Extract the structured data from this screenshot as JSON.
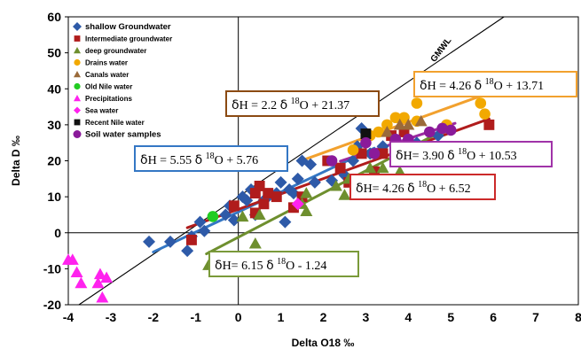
{
  "chart_data": {
    "type": "scatter",
    "xlabel": "Delta O18 ‰",
    "ylabel": "Delta D ‰",
    "xlim": [
      -4,
      8
    ],
    "ylim": [
      -20,
      60
    ],
    "xticks": [
      "-4",
      "-3",
      "-2",
      "-1",
      "0",
      "1",
      "2",
      "3",
      "4",
      "5",
      "6",
      "7",
      "8"
    ],
    "yticks": [
      "-20",
      "-10",
      "0",
      "10",
      "20",
      "30",
      "40",
      "50",
      "60"
    ],
    "grid": false,
    "legend_position": "top-left",
    "series": [
      {
        "name": "shallow Groundwater",
        "marker": "diamond",
        "color": "#2e5aa8",
        "points": [
          [
            -2.1,
            -2.5
          ],
          [
            -1.6,
            -2.5
          ],
          [
            -1.2,
            -5
          ],
          [
            -1.1,
            -1
          ],
          [
            -0.9,
            3
          ],
          [
            -0.8,
            0.5
          ],
          [
            -0.3,
            5
          ],
          [
            -0.2,
            7.5
          ],
          [
            -0.1,
            3.5
          ],
          [
            0.1,
            10
          ],
          [
            0.2,
            9
          ],
          [
            0.3,
            12
          ],
          [
            0.4,
            5
          ],
          [
            0.6,
            9
          ],
          [
            0.7,
            10
          ],
          [
            0.9,
            11
          ],
          [
            1,
            14
          ],
          [
            1.1,
            3
          ],
          [
            1.2,
            12
          ],
          [
            1.3,
            11
          ],
          [
            1.4,
            15
          ],
          [
            1.5,
            20
          ],
          [
            1.7,
            19
          ],
          [
            1.8,
            14
          ],
          [
            2.2,
            14.5
          ],
          [
            2.5,
            16
          ],
          [
            2.7,
            20
          ],
          [
            2.8,
            24
          ],
          [
            2.9,
            29
          ],
          [
            3.1,
            22
          ],
          [
            3.4,
            24
          ],
          [
            4.2,
            25
          ],
          [
            4.7,
            27
          ]
        ]
      },
      {
        "name": "Intermediate groundwater",
        "marker": "square",
        "color": "#b01c1c",
        "points": [
          [
            -1.1,
            -2
          ],
          [
            -0.1,
            7.5
          ],
          [
            0.4,
            5.5
          ],
          [
            0.4,
            11
          ],
          [
            0.5,
            13
          ],
          [
            0.6,
            8
          ],
          [
            0.7,
            11
          ],
          [
            0.9,
            10
          ],
          [
            1.3,
            7
          ],
          [
            1.5,
            10
          ],
          [
            2.1,
            20
          ],
          [
            2.4,
            18
          ],
          [
            2.6,
            14
          ],
          [
            2.9,
            22
          ],
          [
            3.2,
            17
          ],
          [
            3.4,
            22
          ],
          [
            3.6,
            27
          ],
          [
            3.9,
            28
          ],
          [
            5.9,
            30
          ]
        ]
      },
      {
        "name": "deep groundwater",
        "marker": "triangle",
        "color": "#6e8f2e",
        "points": [
          [
            -0.7,
            -9
          ],
          [
            0.1,
            4.5
          ],
          [
            0.4,
            -3
          ],
          [
            0.5,
            5
          ],
          [
            1.5,
            8
          ],
          [
            1.6,
            11
          ],
          [
            1.6,
            6
          ],
          [
            2.3,
            13
          ],
          [
            2.5,
            10.5
          ],
          [
            2.6,
            15
          ],
          [
            3.1,
            18
          ],
          [
            3.4,
            18
          ],
          [
            3.7,
            20
          ],
          [
            3.8,
            17
          ],
          [
            4.4,
            23
          ],
          [
            4.6,
            22
          ]
        ]
      },
      {
        "name": "Drains water",
        "marker": "circle",
        "color": "#f2a900",
        "points": [
          [
            2.7,
            23
          ],
          [
            3.1,
            27
          ],
          [
            3.3,
            28
          ],
          [
            3.5,
            30
          ],
          [
            3.7,
            32
          ],
          [
            3.9,
            32
          ],
          [
            4.2,
            31
          ],
          [
            4.2,
            36
          ],
          [
            4.9,
            30
          ],
          [
            5.7,
            36
          ],
          [
            5.8,
            33
          ]
        ]
      },
      {
        "name": "Canals water",
        "marker": "triangle",
        "color": "#9a6a3a",
        "points": [
          [
            3.5,
            28
          ],
          [
            3.8,
            30
          ],
          [
            4,
            30
          ],
          [
            4.3,
            31
          ]
        ]
      },
      {
        "name": "Old Nile water",
        "marker": "circle",
        "color": "#22cc22",
        "points": [
          [
            -0.6,
            4.5
          ]
        ]
      },
      {
        "name": "Precipitations",
        "marker": "triangle",
        "color": "#ff22ee",
        "points": [
          [
            -4,
            -7.5
          ],
          [
            -3.9,
            -7.5
          ],
          [
            -3.8,
            -11
          ],
          [
            -3.7,
            -14
          ],
          [
            -3.3,
            -14
          ],
          [
            -3.25,
            -11.5
          ],
          [
            -3.1,
            -12.5
          ],
          [
            -3.2,
            -18
          ]
        ]
      },
      {
        "name": "Sea water",
        "marker": "diamond",
        "color": "#ff22ee",
        "points": [
          [
            1.4,
            8
          ]
        ]
      },
      {
        "name": "Recent Nile water",
        "marker": "square",
        "color": "#111111",
        "points": [
          [
            3,
            27.5
          ]
        ]
      },
      {
        "name": "Soil water samples",
        "marker": "circle",
        "color": "#8a1a9a",
        "points": [
          [
            2.2,
            20
          ],
          [
            3,
            25
          ],
          [
            3.2,
            22
          ],
          [
            3.7,
            26
          ],
          [
            4,
            26
          ],
          [
            4.5,
            28
          ],
          [
            4.8,
            29
          ],
          [
            5,
            28.5
          ]
        ]
      }
    ],
    "reference_line": {
      "name": "GMWL",
      "label": "GMWL",
      "slope": 8,
      "intercept": 10
    },
    "fits": [
      {
        "label": "ẟH = 4.26 ẟ ¹⁸O + 13.71",
        "text_parts": [
          "ẟH = 4.26 ẟ ",
          "18",
          "O + 13.71"
        ],
        "slope": 4.26,
        "intercept": 13.71,
        "x_range": [
          1.5,
          5.8
        ],
        "color": "#f2a12e",
        "box_color": "#f2a12e"
      },
      {
        "label": "ẟH = 2.2 ẟ ¹⁸O + 21.37",
        "text_parts": [
          "ẟH = 2.2 ẟ ",
          "18",
          "O + 21.37"
        ],
        "color": "#8b4a12",
        "box_color": "#8b4a12"
      },
      {
        "label": "ẟH = 5.55 ẟ ¹⁸O + 5.76",
        "text_parts": [
          "ẟH = 5.55 ẟ ",
          "18",
          "O + 5.76"
        ],
        "slope": 5.55,
        "intercept": 5.76,
        "x_range": [
          -2,
          3.2
        ],
        "color": "#3477c4",
        "box_color": "#3477c4"
      },
      {
        "label": "ẟH= 3.90 ẟ ¹⁸O + 10.53",
        "text_parts": [
          "ẟH= 3.90 ẟ ",
          "18",
          "O + 10.53"
        ],
        "slope": 3.9,
        "intercept": 10.53,
        "x_range": [
          2.4,
          5.1
        ],
        "color": "#9b2aa0",
        "box_color": "#a033a8"
      },
      {
        "label": "ẟH= 4.26 ẟ ¹⁸O + 6.52",
        "text_parts": [
          "ẟH= 4.26 ẟ ",
          "18",
          "O + 6.52"
        ],
        "slope": 4.26,
        "intercept": 6.52,
        "x_range": [
          -1.2,
          5.9
        ],
        "color": "#b01c1c",
        "box_color": "#cc2a2a"
      },
      {
        "label": "ẟH= 6.15 ẟ ¹⁸O - 1.24",
        "text_parts": [
          "ẟH= 6.15 ẟ ",
          "18",
          "O - 1.24"
        ],
        "slope": 6.15,
        "intercept": -1.24,
        "x_range": [
          -0.75,
          4.6
        ],
        "color": "#6e8f2e",
        "box_color": "#7a9a3a"
      }
    ]
  }
}
